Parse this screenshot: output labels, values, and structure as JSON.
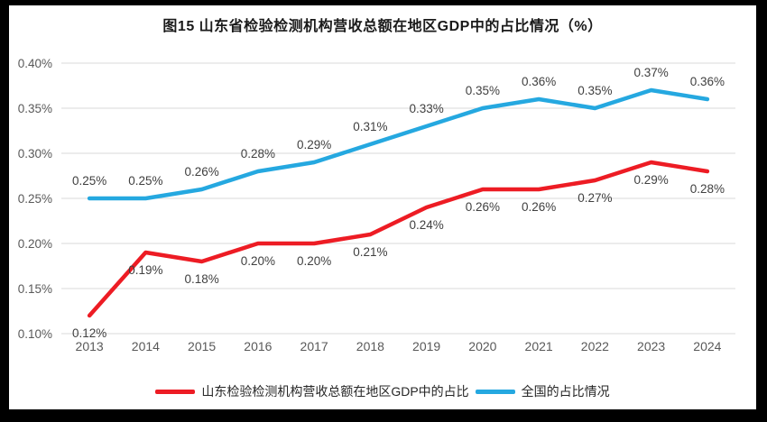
{
  "window": {
    "frame_color": "#000000",
    "background": "#ffffff"
  },
  "chart_data": {
    "type": "line",
    "title": "图15  山东省检验检测机构营收总额在地区GDP中的占比情况（%）",
    "categories": [
      "2013",
      "2014",
      "2015",
      "2016",
      "2017",
      "2018",
      "2019",
      "2020",
      "2021",
      "2022",
      "2023",
      "2024"
    ],
    "series": [
      {
        "name": "山东检验检测机构营收总额在地区GDP中的占比",
        "color": "#ed1c24",
        "values": [
          0.12,
          0.19,
          0.18,
          0.2,
          0.2,
          0.21,
          0.24,
          0.26,
          0.26,
          0.27,
          0.29,
          0.28
        ],
        "data_labels": [
          "0.12%",
          "0.19%",
          "0.18%",
          "0.20%",
          "0.20%",
          "0.21%",
          "0.24%",
          "0.26%",
          "0.26%",
          "0.27%",
          "0.29%",
          "0.28%"
        ],
        "label_position": "below"
      },
      {
        "name": "全国的占比情况",
        "color": "#25a8e0",
        "values": [
          0.25,
          0.25,
          0.26,
          0.28,
          0.29,
          0.31,
          0.33,
          0.35,
          0.36,
          0.35,
          0.37,
          0.36
        ],
        "data_labels": [
          "0.25%",
          "0.25%",
          "0.26%",
          "0.28%",
          "0.29%",
          "0.31%",
          "0.33%",
          "0.35%",
          "0.36%",
          "0.35%",
          "0.37%",
          "0.36%"
        ],
        "label_position": "above"
      }
    ],
    "y_axis": {
      "min": 0.1,
      "max": 0.4,
      "step": 0.05,
      "tick_labels": [
        "0.40%",
        "0.35%",
        "0.30%",
        "0.25%",
        "0.20%",
        "0.15%",
        "0.10%"
      ]
    },
    "x_axis": {
      "tick_labels": [
        "2013",
        "2014",
        "2015",
        "2016",
        "2017",
        "2018",
        "2019",
        "2020",
        "2021",
        "2022",
        "2023",
        "2024"
      ]
    },
    "grid": true,
    "legend_position": "bottom",
    "colors": {
      "gridline": "#d9d9d9",
      "axis_text": "#595959",
      "data_label_text": "#404040",
      "title_text": "#1a1a1a"
    }
  }
}
